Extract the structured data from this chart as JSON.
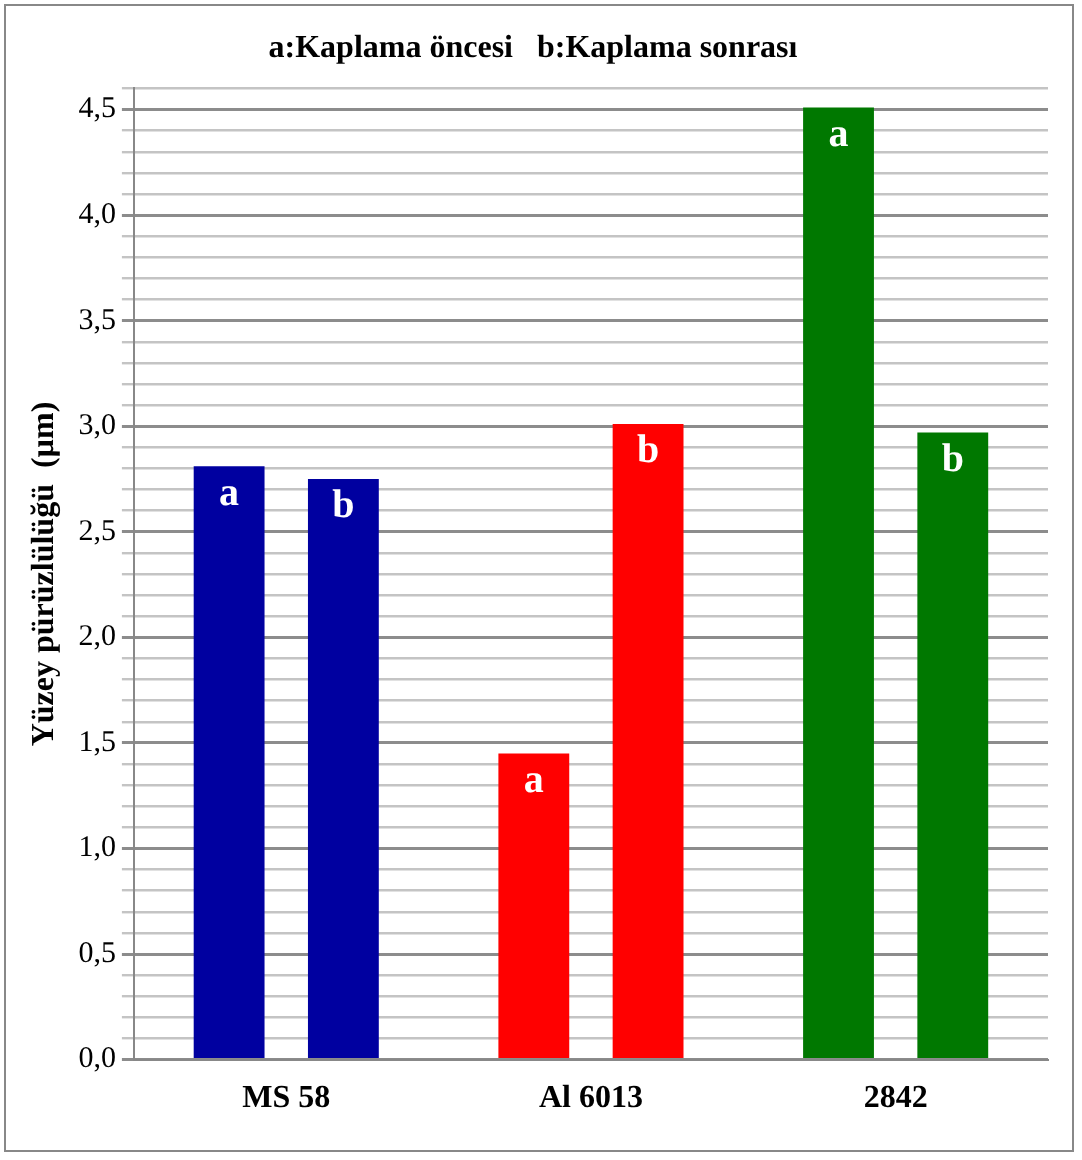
{
  "chart_data": {
    "type": "bar",
    "title": "a:Kaplama öncesi   b:Kaplama sonrası",
    "ylabel": "Yüzey pürüzlülüğü  (µm)",
    "categories": [
      "MS 58",
      "Al 6013",
      "2842"
    ],
    "series": [
      {
        "colors": [
          "#0000a0",
          "#ff0000",
          "#007800"
        ],
        "values": [
          2.81,
          1.45,
          4.51
        ],
        "value_labels": [
          "a",
          "a",
          "a"
        ]
      },
      {
        "colors": [
          "#0000a0",
          "#ff0000",
          "#007800"
        ],
        "values": [
          2.75,
          3.01,
          2.97
        ],
        "value_labels": [
          "b",
          "b",
          "b"
        ]
      }
    ],
    "ylim": [
      0,
      4.6
    ],
    "yticks": [
      {
        "value": 0,
        "label": "0,0"
      },
      {
        "value": 0.1,
        "label": null
      },
      {
        "value": 0.2,
        "label": null
      },
      {
        "value": 0.3,
        "label": null
      },
      {
        "value": 0.4,
        "label": null
      },
      {
        "value": 0.5,
        "label": "0,5"
      },
      {
        "value": 0.6,
        "label": null
      },
      {
        "value": 0.7,
        "label": null
      },
      {
        "value": 0.8,
        "label": null
      },
      {
        "value": 0.9,
        "label": null
      },
      {
        "value": 1,
        "label": "1,0"
      },
      {
        "value": 1.1,
        "label": null
      },
      {
        "value": 1.2,
        "label": null
      },
      {
        "value": 1.3,
        "label": null
      },
      {
        "value": 1.4,
        "label": null
      },
      {
        "value": 1.5,
        "label": "1,5"
      },
      {
        "value": 1.6,
        "label": null
      },
      {
        "value": 1.7,
        "label": null
      },
      {
        "value": 1.8,
        "label": null
      },
      {
        "value": 1.9,
        "label": null
      },
      {
        "value": 2,
        "label": "2,0"
      },
      {
        "value": 2.1,
        "label": null
      },
      {
        "value": 2.2,
        "label": null
      },
      {
        "value": 2.3,
        "label": null
      },
      {
        "value": 2.4,
        "label": null
      },
      {
        "value": 2.5,
        "label": "2,5"
      },
      {
        "value": 2.6,
        "label": null
      },
      {
        "value": 2.7,
        "label": null
      },
      {
        "value": 2.8,
        "label": null
      },
      {
        "value": 2.9,
        "label": null
      },
      {
        "value": 3,
        "label": "3,0"
      },
      {
        "value": 3.1,
        "label": null
      },
      {
        "value": 3.2,
        "label": null
      },
      {
        "value": 3.3,
        "label": null
      },
      {
        "value": 3.4,
        "label": null
      },
      {
        "value": 3.5,
        "label": "3,5"
      },
      {
        "value": 3.6,
        "label": null
      },
      {
        "value": 3.7,
        "label": null
      },
      {
        "value": 3.8,
        "label": null
      },
      {
        "value": 3.9,
        "label": null
      },
      {
        "value": 4,
        "label": "4,0"
      },
      {
        "value": 4.1,
        "label": null
      },
      {
        "value": 4.2,
        "label": null
      },
      {
        "value": 4.3,
        "label": null
      },
      {
        "value": 4.4,
        "label": null
      },
      {
        "value": 4.5,
        "label": "4,5"
      },
      {
        "value": 4.6,
        "label": null
      }
    ],
    "grid": "y",
    "legend": false
  }
}
